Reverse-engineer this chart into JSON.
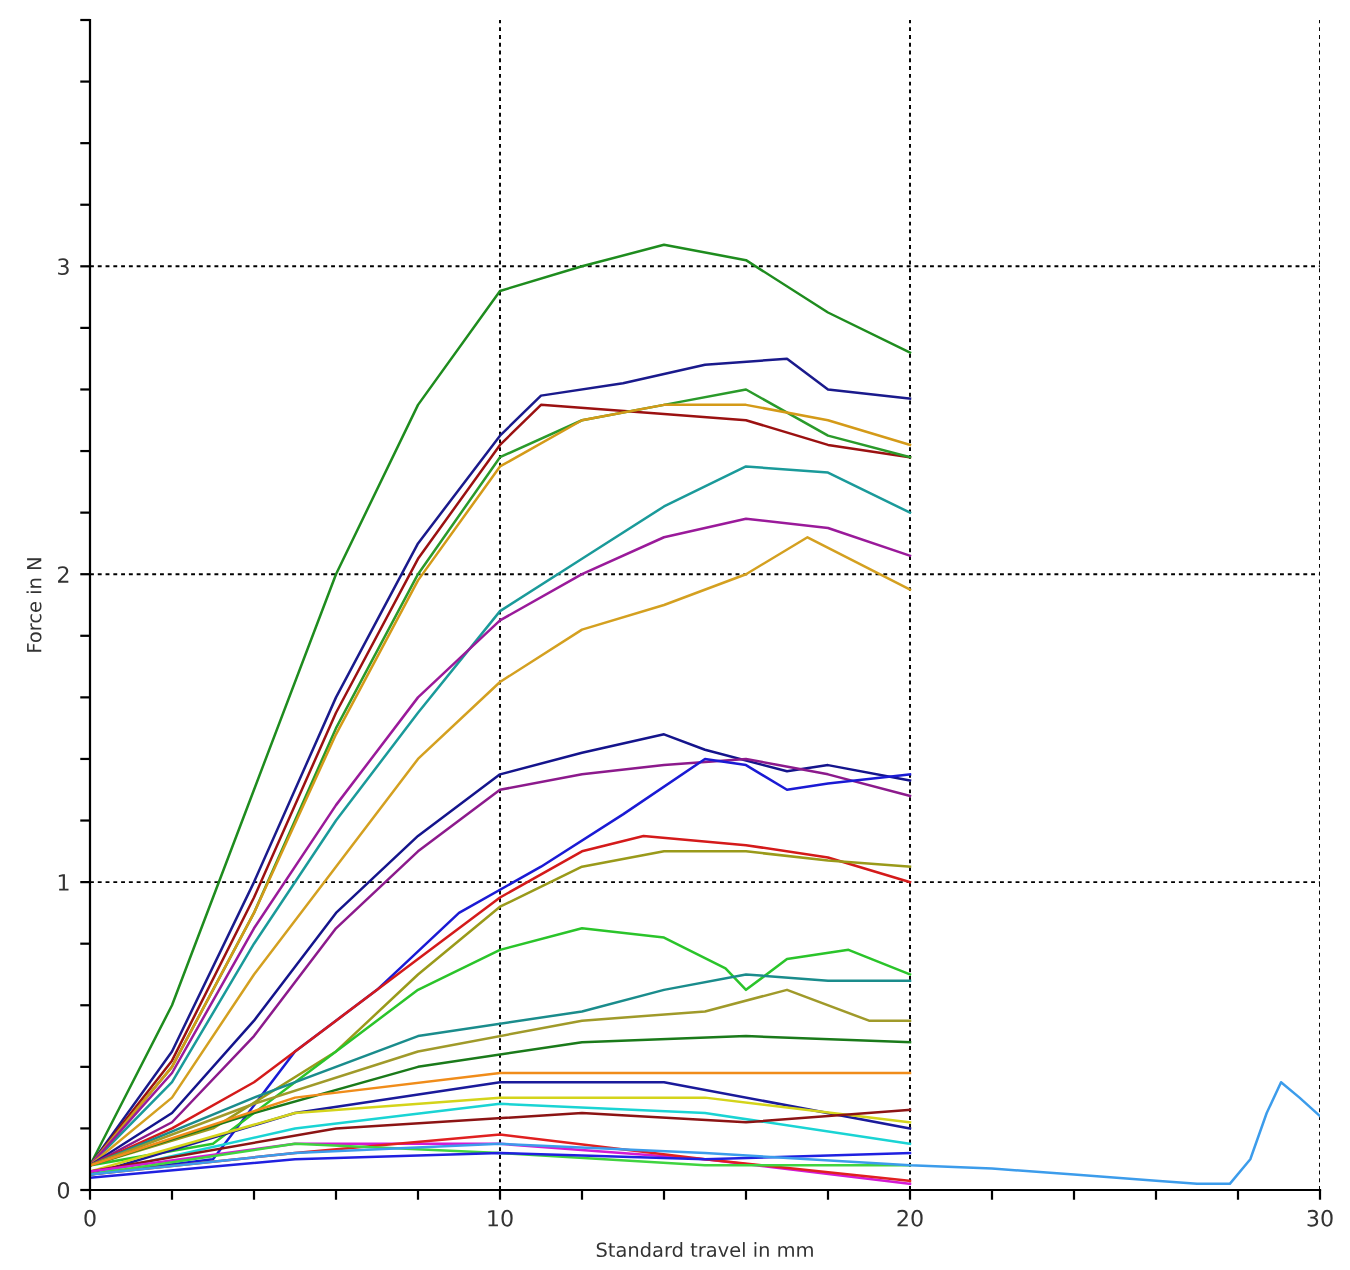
{
  "chart_data": {
    "type": "line",
    "xlabel": "Standard travel in mm",
    "ylabel": "Force in N",
    "xlim": [
      0,
      30
    ],
    "ylim": [
      0,
      3.8
    ],
    "xticks": [
      0,
      {
        "value": 2,
        "label": null
      },
      {
        "value": 4,
        "label": null
      },
      {
        "value": 6,
        "label": null
      },
      {
        "value": 8,
        "label": null
      },
      10,
      {
        "value": 12,
        "label": null
      },
      {
        "value": 14,
        "label": null
      },
      {
        "value": 16,
        "label": null
      },
      {
        "value": 18,
        "label": null
      },
      20,
      {
        "value": 22,
        "label": null
      },
      {
        "value": 24,
        "label": null
      },
      {
        "value": 26,
        "label": null
      },
      {
        "value": 28,
        "label": null
      },
      30
    ],
    "yticks": [
      0,
      {
        "value": 0.2,
        "label": null
      },
      {
        "value": 0.4,
        "label": null
      },
      {
        "value": 0.6,
        "label": null
      },
      {
        "value": 0.8,
        "label": null
      },
      1,
      {
        "value": 1.2,
        "label": null
      },
      {
        "value": 1.4,
        "label": null
      },
      {
        "value": 1.6,
        "label": null
      },
      {
        "value": 1.8,
        "label": null
      },
      2,
      {
        "value": 2.2,
        "label": null
      },
      {
        "value": 2.4,
        "label": null
      },
      {
        "value": 2.6,
        "label": null
      },
      {
        "value": 2.8,
        "label": null
      },
      3,
      {
        "value": 3.2,
        "label": null
      },
      {
        "value": 3.4,
        "label": null
      },
      {
        "value": 3.6,
        "label": null
      },
      {
        "value": 3.8,
        "label": null
      }
    ],
    "grid": "major",
    "legend": false,
    "marker": "none",
    "line_style": "solid",
    "series": [
      {
        "color": "#1e8c1e",
        "x": [
          0,
          2,
          4,
          6,
          8,
          10,
          12,
          14,
          16,
          18,
          20
        ],
        "values": [
          0.08,
          0.6,
          1.3,
          2.0,
          2.55,
          2.92,
          3.0,
          3.07,
          3.02,
          2.85,
          2.72
        ]
      },
      {
        "color": "#1a1a8c",
        "x": [
          0,
          2,
          4,
          6,
          8,
          10,
          11,
          13,
          15,
          17,
          18,
          20
        ],
        "values": [
          0.08,
          0.45,
          1.0,
          1.6,
          2.1,
          2.45,
          2.58,
          2.62,
          2.68,
          2.7,
          2.6,
          2.57
        ]
      },
      {
        "color": "#9b1111",
        "x": [
          0,
          2,
          4,
          6,
          8,
          10,
          11,
          14,
          16,
          18,
          20
        ],
        "values": [
          0.08,
          0.42,
          0.95,
          1.55,
          2.05,
          2.42,
          2.55,
          2.52,
          2.5,
          2.42,
          2.38
        ]
      },
      {
        "color": "#2a9a2a",
        "x": [
          0,
          2,
          4,
          6,
          8,
          10,
          12,
          14,
          16,
          18,
          20
        ],
        "values": [
          0.08,
          0.4,
          0.9,
          1.5,
          2.0,
          2.38,
          2.5,
          2.55,
          2.6,
          2.45,
          2.38
        ]
      },
      {
        "color": "#d49a18",
        "x": [
          0,
          2,
          4,
          6,
          8,
          10,
          12,
          14,
          16,
          18,
          20
        ],
        "values": [
          0.08,
          0.4,
          0.9,
          1.48,
          1.98,
          2.35,
          2.5,
          2.55,
          2.55,
          2.5,
          2.42
        ]
      },
      {
        "color": "#1a9a9a",
        "x": [
          0,
          2,
          4,
          6,
          8,
          10,
          12,
          14,
          16,
          18,
          20
        ],
        "values": [
          0.08,
          0.35,
          0.8,
          1.2,
          1.55,
          1.88,
          2.05,
          2.22,
          2.35,
          2.33,
          2.2
        ]
      },
      {
        "color": "#9a1a9a",
        "x": [
          0,
          2,
          4,
          6,
          8,
          10,
          12,
          14,
          16,
          18,
          20
        ],
        "values": [
          0.08,
          0.38,
          0.85,
          1.25,
          1.6,
          1.85,
          2.0,
          2.12,
          2.18,
          2.15,
          2.06
        ]
      },
      {
        "color": "#d4a020",
        "x": [
          0,
          2,
          4,
          6,
          8,
          10,
          12,
          14,
          16,
          17.5,
          20
        ],
        "values": [
          0.08,
          0.3,
          0.7,
          1.05,
          1.4,
          1.65,
          1.82,
          1.9,
          2.0,
          2.12,
          1.95
        ]
      },
      {
        "color": "#14148c",
        "x": [
          0,
          2,
          4,
          6,
          8,
          10,
          12,
          14,
          15,
          17,
          18,
          20
        ],
        "values": [
          0.08,
          0.25,
          0.55,
          0.9,
          1.15,
          1.35,
          1.42,
          1.48,
          1.43,
          1.36,
          1.38,
          1.33
        ]
      },
      {
        "color": "#8c1a8c",
        "x": [
          0,
          2,
          4,
          6,
          8,
          10,
          12,
          14,
          16,
          18,
          20
        ],
        "values": [
          0.08,
          0.22,
          0.5,
          0.85,
          1.1,
          1.3,
          1.35,
          1.38,
          1.4,
          1.35,
          1.28
        ]
      },
      {
        "color": "#1a1ad4",
        "x": [
          0,
          3,
          5,
          7,
          9,
          11,
          13,
          15,
          16,
          17,
          18,
          20
        ],
        "values": [
          0.05,
          0.1,
          0.45,
          0.65,
          0.9,
          1.05,
          1.22,
          1.4,
          1.38,
          1.3,
          1.32,
          1.35
        ]
      },
      {
        "color": "#d41a1a",
        "x": [
          0,
          2,
          4,
          6,
          8,
          10,
          12,
          13.5,
          16,
          18,
          20
        ],
        "values": [
          0.08,
          0.2,
          0.35,
          0.55,
          0.75,
          0.95,
          1.1,
          1.15,
          1.12,
          1.08,
          1.0
        ]
      },
      {
        "color": "#9a9a1a",
        "x": [
          0,
          3,
          6,
          8,
          10,
          12,
          14,
          16,
          18,
          20
        ],
        "values": [
          0.08,
          0.2,
          0.45,
          0.7,
          0.92,
          1.05,
          1.1,
          1.1,
          1.07,
          1.05
        ]
      },
      {
        "color": "#2ac42a",
        "x": [
          0,
          3,
          6,
          8,
          10,
          12,
          14,
          15.5,
          16,
          17,
          18.5,
          20
        ],
        "values": [
          0.08,
          0.15,
          0.45,
          0.65,
          0.78,
          0.85,
          0.82,
          0.72,
          0.65,
          0.75,
          0.78,
          0.7
        ]
      },
      {
        "color": "#1a8c8c",
        "x": [
          0,
          4,
          8,
          12,
          14,
          16,
          18,
          20
        ],
        "values": [
          0.08,
          0.3,
          0.5,
          0.58,
          0.65,
          0.7,
          0.68,
          0.68
        ]
      },
      {
        "color": "#a09a2a",
        "x": [
          0,
          4,
          8,
          12,
          15,
          17,
          19,
          20
        ],
        "values": [
          0.08,
          0.28,
          0.45,
          0.55,
          0.58,
          0.65,
          0.55,
          0.55
        ]
      },
      {
        "color": "#1a7a1a",
        "x": [
          0,
          4,
          8,
          12,
          16,
          20
        ],
        "values": [
          0.08,
          0.25,
          0.4,
          0.48,
          0.5,
          0.48
        ]
      },
      {
        "color": "#f08c1a",
        "x": [
          0,
          5,
          10,
          15,
          20
        ],
        "values": [
          0.08,
          0.3,
          0.38,
          0.38,
          0.38
        ]
      },
      {
        "color": "#1a1a9a",
        "x": [
          0,
          5,
          10,
          14,
          20
        ],
        "values": [
          0.05,
          0.25,
          0.35,
          0.35,
          0.2
        ]
      },
      {
        "color": "#d4d41a",
        "x": [
          0,
          5,
          10,
          15,
          20
        ],
        "values": [
          0.06,
          0.25,
          0.3,
          0.3,
          0.22
        ]
      },
      {
        "color": "#1ad4d4",
        "x": [
          0,
          5,
          10,
          15,
          20
        ],
        "values": [
          0.05,
          0.2,
          0.28,
          0.25,
          0.15
        ]
      },
      {
        "color": "#8c1414",
        "x": [
          0,
          6,
          12,
          16,
          20
        ],
        "values": [
          0.06,
          0.2,
          0.25,
          0.22,
          0.26
        ]
      },
      {
        "color": "#d41ad4",
        "x": [
          0,
          5,
          10,
          15,
          20
        ],
        "values": [
          0.06,
          0.15,
          0.15,
          0.1,
          0.02
        ]
      },
      {
        "color": "#e02020",
        "x": [
          0,
          5,
          10,
          15,
          20
        ],
        "values": [
          0.05,
          0.12,
          0.18,
          0.1,
          0.03
        ]
      },
      {
        "color": "#40d440",
        "x": [
          0,
          5,
          10,
          15,
          20
        ],
        "values": [
          0.05,
          0.15,
          0.12,
          0.08,
          0.08
        ]
      },
      {
        "color": "#2020e0",
        "x": [
          0,
          5,
          10,
          15,
          20
        ],
        "values": [
          0.04,
          0.1,
          0.12,
          0.1,
          0.12
        ]
      },
      {
        "color": "#3c9ceb",
        "x": [
          0,
          5,
          10,
          15,
          20,
          22,
          24,
          26,
          27,
          27.8,
          28.3,
          28.7,
          29.05,
          29.5,
          30
        ],
        "values": [
          0.05,
          0.12,
          0.15,
          0.12,
          0.08,
          0.07,
          0.05,
          0.03,
          0.02,
          0.02,
          0.1,
          0.25,
          0.35,
          0.3,
          0.24
        ]
      }
    ]
  }
}
